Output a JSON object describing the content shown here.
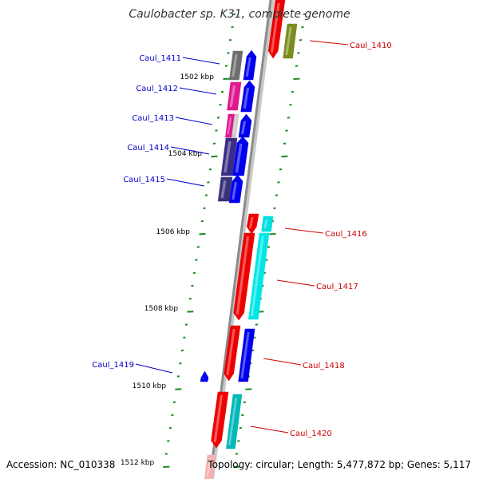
{
  "title": "Caulobacter sp. K31, complete genome",
  "accession": "Accession: NC_010338",
  "stats": "Topology: circular; Length: 5,477,872 bp; Genes: 5,117",
  "scale_labels": [
    "1502 kbp",
    "1504 kbp",
    "1506 kbp",
    "1508 kbp",
    "1510 kbp",
    "1512 kbp"
  ],
  "genes": [
    {
      "name": "Caul_1410",
      "strand": "minus",
      "label_color": "#cc0000"
    },
    {
      "name": "Caul_1411",
      "strand": "plus",
      "label_color": "#0000cc"
    },
    {
      "name": "Caul_1412",
      "strand": "plus",
      "label_color": "#0000cc"
    },
    {
      "name": "Caul_1413",
      "strand": "plus",
      "label_color": "#0000cc"
    },
    {
      "name": "Caul_1414",
      "strand": "plus",
      "label_color": "#0000cc"
    },
    {
      "name": "Caul_1415",
      "strand": "plus",
      "label_color": "#0000cc"
    },
    {
      "name": "Caul_1416",
      "strand": "minus",
      "label_color": "#cc0000"
    },
    {
      "name": "Caul_1417",
      "strand": "minus",
      "label_color": "#cc0000"
    },
    {
      "name": "Caul_1418",
      "strand": "minus",
      "label_color": "#cc0000"
    },
    {
      "name": "Caul_1419",
      "strand": "plus",
      "label_color": "#0000cc"
    },
    {
      "name": "Caul_1420",
      "strand": "minus",
      "label_color": "#cc0000"
    }
  ],
  "colors": {
    "backbone": "#8c8c8c",
    "plus_strand": "#0000ee",
    "minus_strand": "#ee0000",
    "tick": "#1a8a1a"
  }
}
